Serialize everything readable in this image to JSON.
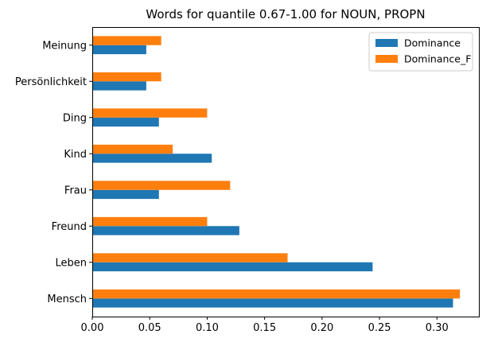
{
  "chart_data": {
    "type": "bar",
    "orientation": "horizontal",
    "title": "Words for quantile 0.67-1.00 for NOUN, PROPN",
    "xlabel": "",
    "ylabel": "",
    "categories": [
      "Mensch",
      "Leben",
      "Freund",
      "Frau",
      "Kind",
      "Ding",
      "Persönlichkeit",
      "Meinung"
    ],
    "series": [
      {
        "name": "Dominance",
        "color": "#1f77b4",
        "values": [
          0.314,
          0.244,
          0.128,
          0.058,
          0.104,
          0.058,
          0.047,
          0.047
        ]
      },
      {
        "name": "Dominance_F",
        "color": "#ff7f0e",
        "values": [
          0.32,
          0.17,
          0.1,
          0.12,
          0.07,
          0.1,
          0.06,
          0.06
        ]
      }
    ],
    "xlim": [
      0,
      0.3365
    ],
    "xticks": [
      "0.00",
      "0.05",
      "0.10",
      "0.15",
      "0.20",
      "0.25",
      "0.30"
    ],
    "grid": false,
    "legend_position": "top-right"
  }
}
